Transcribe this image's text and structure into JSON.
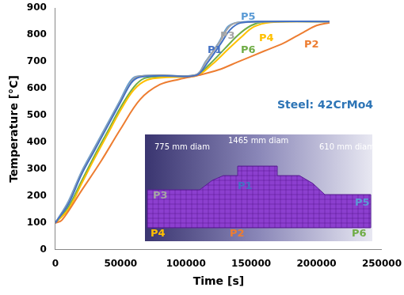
{
  "chart_data": {
    "type": "line",
    "x_label": "Time [s]",
    "y_label": "Temperature [°C]",
    "xlim": [
      0,
      250000
    ],
    "xticks": [
      0,
      50000,
      100000,
      150000,
      200000,
      250000
    ],
    "ylim": [
      0,
      900
    ],
    "yticks": [
      0,
      100,
      200,
      300,
      400,
      500,
      600,
      700,
      800,
      900
    ],
    "grid": false,
    "annotations": [
      "Steel: 42CrMo4",
      "775 mm diam",
      "1465 mm diam",
      "610 mm diam"
    ],
    "series": [
      {
        "name": "P1",
        "color": "#4472c4",
        "x": [
          0,
          10000,
          20000,
          30000,
          40000,
          50000,
          58000,
          64000,
          80000,
          108000,
          117000,
          127000,
          134000,
          142000,
          160000,
          210000
        ],
        "values": [
          100,
          170,
          280,
          370,
          460,
          550,
          620,
          642,
          648,
          650,
          700,
          770,
          820,
          845,
          850,
          850
        ]
      },
      {
        "name": "P2",
        "color": "#ed7d31",
        "x": [
          0,
          5000,
          20000,
          35000,
          50000,
          65000,
          80000,
          95000,
          110000,
          125000,
          140000,
          160000,
          175000,
          190000,
          200000,
          210000
        ],
        "values": [
          100,
          110,
          220,
          330,
          450,
          560,
          615,
          635,
          650,
          670,
          700,
          740,
          770,
          810,
          835,
          845
        ]
      },
      {
        "name": "P3",
        "color": "#a5a5a5",
        "x": [
          0,
          10000,
          20000,
          30000,
          40000,
          50000,
          58000,
          63000,
          80000,
          108000,
          116000,
          126000,
          133000,
          140000,
          210000
        ],
        "values": [
          100,
          175,
          285,
          375,
          465,
          555,
          625,
          645,
          650,
          652,
          705,
          775,
          830,
          846,
          850
        ]
      },
      {
        "name": "P4",
        "color": "#ffc000",
        "x": [
          0,
          10000,
          20000,
          30000,
          40000,
          50000,
          60000,
          70000,
          85000,
          108000,
          120000,
          132000,
          142000,
          152000,
          165000,
          210000
        ],
        "values": [
          100,
          150,
          245,
          340,
          430,
          520,
          595,
          632,
          642,
          648,
          690,
          745,
          790,
          830,
          847,
          850
        ]
      },
      {
        "name": "P5",
        "color": "#5b9bd5",
        "x": [
          0,
          10000,
          20000,
          30000,
          40000,
          50000,
          57000,
          62000,
          80000,
          108000,
          115000,
          125000,
          132000,
          138000,
          150000,
          210000
        ],
        "values": [
          100,
          180,
          290,
          380,
          470,
          560,
          625,
          645,
          650,
          652,
          700,
          770,
          830,
          845,
          850,
          850
        ]
      },
      {
        "name": "P6",
        "color": "#70ad47",
        "x": [
          0,
          10000,
          20000,
          30000,
          40000,
          50000,
          60000,
          68000,
          80000,
          108000,
          118000,
          130000,
          140000,
          150000,
          160000,
          210000
        ],
        "values": [
          100,
          160,
          255,
          350,
          440,
          530,
          605,
          638,
          645,
          650,
          690,
          750,
          800,
          835,
          848,
          850
        ]
      }
    ]
  }
}
